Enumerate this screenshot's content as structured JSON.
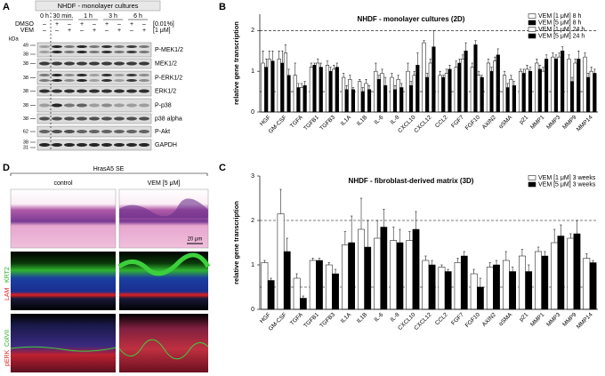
{
  "panel_labels": [
    "A",
    "B",
    "C",
    "D"
  ],
  "blot": {
    "title": "NHDF - monolayer cultures",
    "time_labels": [
      "0 h",
      "30 min.",
      "1 h",
      "3 h",
      "6 h"
    ],
    "treatments": [
      {
        "label": "DMSO",
        "signs": [
          "–",
          "+",
          "–",
          "+",
          "–",
          "+",
          "–",
          "+",
          "–"
        ],
        "conc": "[0.01%]"
      },
      {
        "label": "VEM",
        "signs": [
          "–",
          "–",
          "+",
          "–",
          "+",
          "–",
          "+",
          "–",
          "+"
        ],
        "conc": "[1 μM]"
      }
    ],
    "kda_label": "kDa",
    "rows": [
      {
        "label": "P-MEK1/2",
        "markers": [
          49,
          38
        ]
      },
      {
        "label": "MEK1/2",
        "markers": [
          38
        ]
      },
      {
        "label": "P-ERK1/2",
        "markers": [
          38
        ]
      },
      {
        "label": "ERK1/2",
        "markers": [
          38
        ]
      },
      {
        "label": "P-p38",
        "markers": [
          38
        ]
      },
      {
        "label": "p38 alpha",
        "markers": [
          38
        ]
      },
      {
        "label": "P-Akt",
        "markers": [
          62
        ]
      },
      {
        "label": "GAPDH",
        "markers": [
          38,
          31
        ]
      }
    ]
  },
  "histology": {
    "title": "HrasA5 SE",
    "columns": [
      "control",
      "VEM [5 μM]"
    ],
    "row_labels": [
      [
        "LAM",
        "KRT2"
      ],
      [
        "pERK",
        "ColVII"
      ]
    ],
    "scale_bar": "20 μm"
  },
  "chart_data": [
    {
      "type": "bar",
      "title": "NHDF - monolayer cultures (2D)",
      "ylabel": "relative gene transcription",
      "categories": [
        "HGF",
        "GM-CSF",
        "TGFA",
        "TGFB1",
        "TGFB3",
        "IL1A",
        "IL1B",
        "IL-6",
        "IL-8",
        "CXCL10",
        "CXCL12",
        "CCL2",
        "FGF7",
        "FGF10",
        "AXIN2",
        "αSMA",
        "p21",
        "MMP1",
        "MMP3",
        "MMP9",
        "MMP14"
      ],
      "series": [
        {
          "name": "VEM [1 μM] 8 h",
          "color": "#ffffff",
          "values": [
            1.2,
            1.3,
            0.9,
            1.1,
            1.15,
            0.85,
            0.75,
            1.0,
            0.85,
            1.0,
            1.7,
            0.9,
            1.1,
            1.1,
            1.2,
            0.9,
            1.0,
            1.2,
            1.35,
            1.3,
            1.35
          ],
          "errors": [
            0.3,
            0.2,
            0.3,
            0.1,
            0.1,
            0.1,
            0.05,
            0.2,
            0.1,
            0.2,
            0.05,
            0.1,
            0.15,
            0.1,
            0.1,
            0.1,
            0.05,
            0.1,
            0.1,
            0.1,
            0.1
          ]
        },
        {
          "name": "VEM [5 μM] 8 h",
          "color": "#000000",
          "values": [
            1.1,
            1.2,
            0.6,
            1.15,
            1.0,
            0.55,
            0.5,
            0.8,
            0.55,
            0.65,
            0.85,
            0.85,
            1.2,
            1.65,
            1.0,
            0.6,
            0.95,
            1.05,
            1.3,
            0.75,
            0.85
          ],
          "errors": [
            0.2,
            0.3,
            0.1,
            0.05,
            0.1,
            0.1,
            0.1,
            0.1,
            0.1,
            0.1,
            0.1,
            0.05,
            0.1,
            0.1,
            0.1,
            0.1,
            0.1,
            0.1,
            0.1,
            0.1,
            0.1
          ]
        },
        {
          "name": "VEM [1 μM] 24 h",
          "color": "#ffffff",
          "values": [
            1.3,
            1.45,
            0.6,
            1.2,
            1.05,
            0.8,
            0.7,
            0.95,
            0.8,
            0.9,
            1.2,
            0.95,
            1.3,
            0.9,
            1.25,
            0.8,
            1.05,
            1.0,
            1.35,
            1.2,
            1.0
          ],
          "errors": [
            0.2,
            0.2,
            0.1,
            0.1,
            0.1,
            0.1,
            0.1,
            0.1,
            0.1,
            0.1,
            0.1,
            0.1,
            0.1,
            0.1,
            0.1,
            0.1,
            0.1,
            0.1,
            0.1,
            0.1,
            0.1
          ]
        },
        {
          "name": "VEM [5 μM] 24 h",
          "color": "#000000",
          "values": [
            1.25,
            0.9,
            0.65,
            1.1,
            1.1,
            0.55,
            0.55,
            0.65,
            0.6,
            1.15,
            1.6,
            1.05,
            1.5,
            0.85,
            1.4,
            0.65,
            1.0,
            1.3,
            1.5,
            1.3,
            0.95
          ],
          "errors": [
            0.25,
            0.15,
            0.1,
            0.1,
            0.1,
            0.05,
            0.1,
            0.2,
            0.1,
            0.3,
            0.4,
            0.1,
            0.2,
            0.05,
            0.15,
            0.1,
            0.1,
            0.1,
            0.1,
            0.2,
            0.1
          ]
        }
      ],
      "ylim": [
        0,
        2.4
      ],
      "yticks": [
        0,
        1,
        2
      ],
      "ref_lines": [
        2,
        0.5
      ],
      "legend": "upper right"
    },
    {
      "type": "bar",
      "title": "NHDF - fibroblast-derived matrix (3D)",
      "ylabel": "relative gene transcription",
      "categories": [
        "HGF",
        "GM-CSF",
        "TGFA",
        "TGFB1",
        "TGFB3",
        "IL1A",
        "IL1B",
        "IL-6",
        "IL-8",
        "CXCL10",
        "CXCL12",
        "CCL2",
        "FGF7",
        "FGF10",
        "AXIN2",
        "αSMA",
        "p21",
        "MMP1",
        "MMP3",
        "MMP9",
        "MMP14"
      ],
      "series": [
        {
          "name": "VEM [1 μM] 3 weeks",
          "color": "#ffffff",
          "values": [
            1.05,
            2.15,
            0.7,
            1.1,
            1.0,
            1.45,
            1.8,
            1.6,
            1.55,
            1.55,
            1.1,
            0.95,
            1.05,
            0.8,
            0.95,
            1.1,
            1.2,
            1.3,
            1.5,
            1.6,
            1.15
          ],
          "errors": [
            0.05,
            0.55,
            0.1,
            0.05,
            0.05,
            0.3,
            0.7,
            0.4,
            0.3,
            0.2,
            0.1,
            0.05,
            0.1,
            0.1,
            0.1,
            0.2,
            0.15,
            0.1,
            0.3,
            0.1,
            0.1
          ]
        },
        {
          "name": "VEM [5 μM] 3 weeks",
          "color": "#000000",
          "values": [
            0.65,
            1.3,
            0.25,
            1.1,
            0.8,
            1.5,
            1.4,
            1.85,
            1.5,
            1.8,
            1.0,
            0.85,
            1.2,
            0.5,
            1.0,
            0.85,
            0.85,
            1.2,
            1.65,
            1.7,
            1.05
          ],
          "errors": [
            0.05,
            0.3,
            0.05,
            0.05,
            0.1,
            0.6,
            0.6,
            0.4,
            0.3,
            0.4,
            0.1,
            0.05,
            0.1,
            0.2,
            0.1,
            0.1,
            0.15,
            0.1,
            0.25,
            0.3,
            0.05
          ]
        }
      ],
      "ylim": [
        0,
        3
      ],
      "yticks": [
        0,
        1,
        2,
        3
      ],
      "ref_lines": [
        2,
        0.5
      ],
      "legend": "upper right"
    }
  ]
}
